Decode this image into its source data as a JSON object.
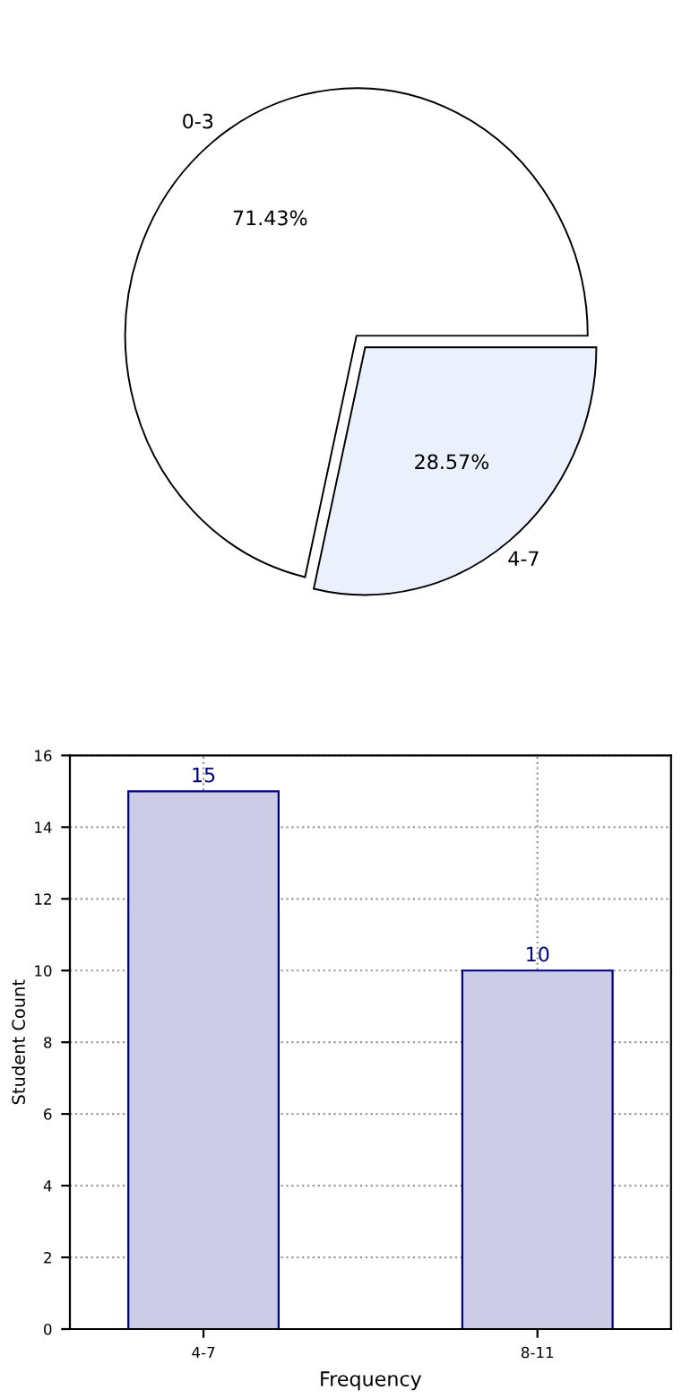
{
  "chart_data": [
    {
      "type": "pie",
      "categories": [
        "0-3",
        "4-7"
      ],
      "values": [
        71.43,
        28.57
      ],
      "colors": [
        "#ffffff",
        "#eaf0fc"
      ],
      "value_labels": [
        "71.43%",
        "28.57%"
      ]
    },
    {
      "type": "bar",
      "categories": [
        "4-7",
        "8-11"
      ],
      "values": [
        15,
        10
      ],
      "color": "#ccccE6",
      "xlabel": "Frequency",
      "ylabel": "Student Count",
      "ylim": [
        0,
        16
      ],
      "yticks": [
        0,
        2,
        4,
        6,
        8,
        10,
        12,
        14,
        16
      ],
      "grid": true,
      "data_labels": true
    }
  ]
}
